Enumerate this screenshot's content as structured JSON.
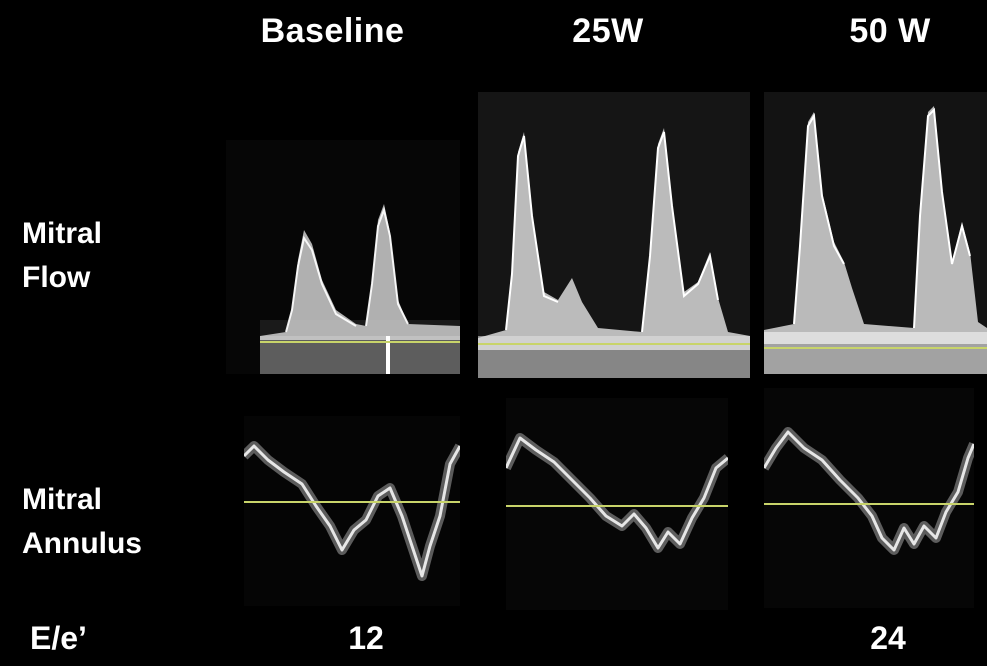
{
  "columns": [
    "Baseline",
    "25W",
    "50 W"
  ],
  "rows": {
    "flow": [
      "Mitral",
      "Flow"
    ],
    "annulus": [
      "Mitral",
      "Annulus"
    ]
  },
  "ratio": {
    "label": "E/e’",
    "values": [
      "12",
      "",
      "24"
    ]
  },
  "colors": {
    "background": "#000000",
    "baseline_line": "#c8d46a",
    "signal": "#e8e8e8"
  }
}
